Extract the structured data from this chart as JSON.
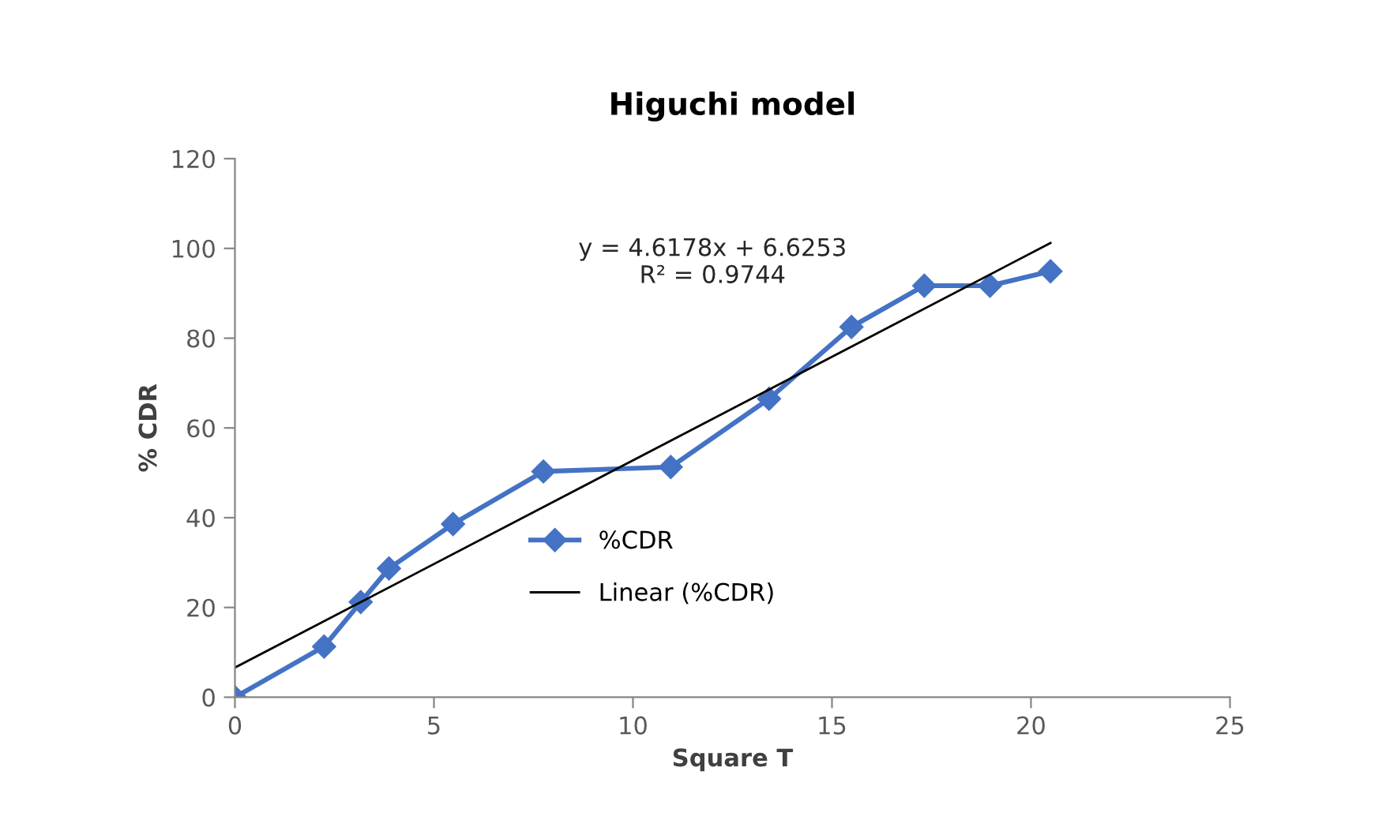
{
  "chart_data": {
    "type": "line",
    "title": "Higuchi model",
    "xlabel": "Square T",
    "ylabel": "% CDR",
    "xlim": [
      0,
      25
    ],
    "xticks": [
      0,
      5,
      10,
      15,
      20,
      25
    ],
    "ylim": [
      0,
      120
    ],
    "yticks": [
      0,
      20,
      40,
      60,
      80,
      100,
      120
    ],
    "grid": false,
    "legend": "center",
    "marker": "diamond",
    "line_style": "solid",
    "series": [
      {
        "name": "%CDR",
        "color": "#4472c4",
        "x": [
          0,
          2.24,
          3.16,
          3.87,
          5.48,
          7.75,
          10.95,
          13.42,
          15.49,
          17.32,
          18.97,
          20.49
        ],
        "values": [
          0,
          11.3,
          21.2,
          28.7,
          38.6,
          50.3,
          51.3,
          66.5,
          82.5,
          91.7,
          91.7,
          94.9
        ]
      },
      {
        "name": "Linear (%CDR)",
        "color": "#000000",
        "type": "line",
        "marker": "none",
        "x": [
          0,
          20.49
        ],
        "values": [
          6.6,
          101.2
        ]
      }
    ],
    "annotations": [
      "y = 4.6178x + 6.6253\nR² = 0.9744"
    ]
  }
}
